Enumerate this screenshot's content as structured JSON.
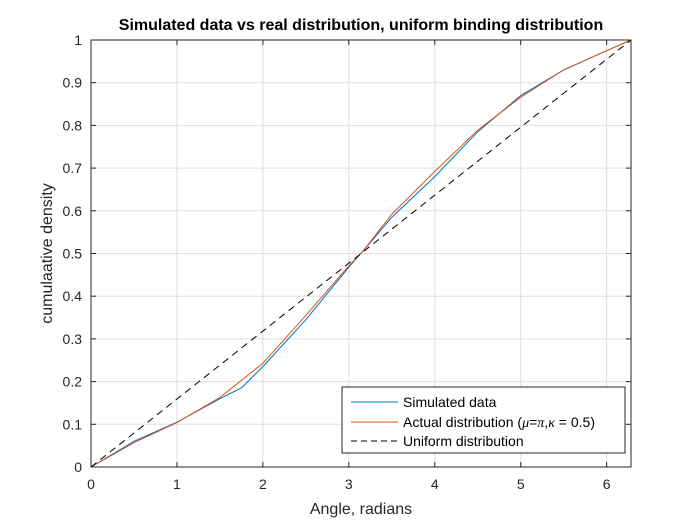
{
  "chart_data": {
    "type": "line",
    "title": "Simulated data vs real distribution, uniform binding distribution",
    "xlabel": "Angle, radians",
    "ylabel": "cumulaative density",
    "xlim": [
      0,
      6.2832
    ],
    "ylim": [
      0,
      1
    ],
    "xticks": [
      0,
      1,
      2,
      3,
      4,
      5,
      6
    ],
    "xtick_labels": [
      "0",
      "1",
      "2",
      "3",
      "4",
      "5",
      "6"
    ],
    "yticks": [
      0,
      0.1,
      0.2,
      0.3,
      0.4,
      0.5,
      0.6,
      0.7,
      0.8,
      0.9,
      1
    ],
    "ytick_labels": [
      "0",
      "0.1",
      "0.2",
      "0.3",
      "0.4",
      "0.5",
      "0.6",
      "0.7",
      "0.8",
      "0.9",
      "1"
    ],
    "grid": true,
    "legend_position": "bottom-right",
    "series": [
      {
        "name": "Simulated data",
        "color": "#0072BD",
        "style": "solid",
        "x": [
          0,
          0.5,
          1.0,
          1.5,
          1.75,
          2.0,
          2.5,
          3.0,
          3.14,
          3.5,
          4.0,
          4.5,
          5.0,
          5.5,
          6.0,
          6.2832
        ],
        "y": [
          0,
          0.06,
          0.105,
          0.16,
          0.185,
          0.235,
          0.345,
          0.468,
          0.5,
          0.585,
          0.68,
          0.785,
          0.87,
          0.93,
          0.975,
          1.0
        ]
      },
      {
        "name": "Actual distribution (μ=π,κ = 0.5)",
        "color": "#D95319",
        "style": "solid",
        "x": [
          0,
          0.5,
          1.0,
          1.5,
          2.0,
          2.5,
          3.0,
          3.1416,
          3.5,
          4.0,
          4.5,
          5.0,
          5.5,
          6.0,
          6.2832
        ],
        "y": [
          0,
          0.057,
          0.104,
          0.163,
          0.243,
          0.355,
          0.471,
          0.5,
          0.592,
          0.692,
          0.789,
          0.866,
          0.93,
          0.975,
          1.0
        ]
      },
      {
        "name": "Uniform distribution",
        "color": "#000000",
        "style": "dashed",
        "x": [
          0,
          6.2832
        ],
        "y": [
          0,
          1
        ]
      }
    ],
    "legend_labels": [
      {
        "text": "Simulated data",
        "math": false
      },
      {
        "prefix": "Actual distribution (",
        "mu": "μ",
        "eq1": "=",
        "pi": "π",
        "comma": ",",
        "kappa": "κ",
        "suffix": " = 0.5)",
        "math": true
      },
      {
        "text": "Uniform distribution",
        "math": false
      }
    ]
  }
}
